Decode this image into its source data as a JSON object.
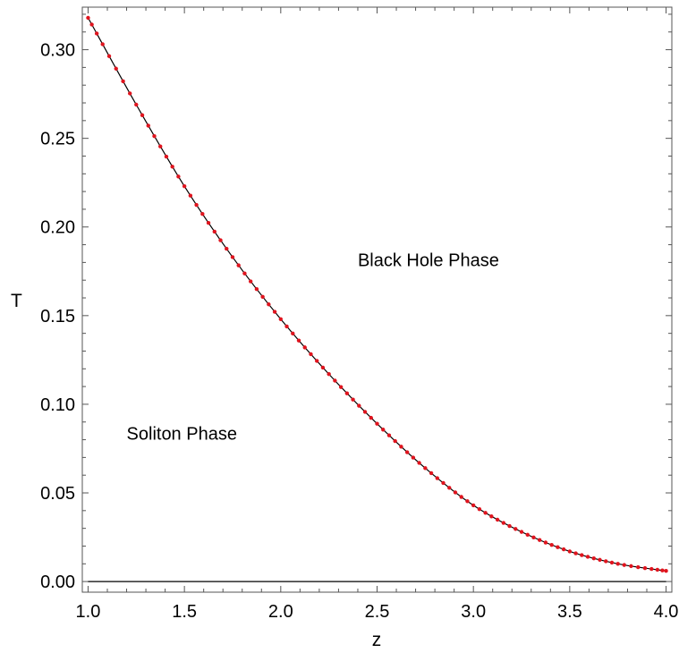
{
  "chart_data": {
    "type": "line",
    "title": "",
    "xlabel": "z",
    "ylabel": "T",
    "xlim": [
      0.97,
      4.03
    ],
    "ylim": [
      -0.006,
      0.324
    ],
    "x_ticks": [
      1.0,
      1.5,
      2.0,
      2.5,
      3.0,
      3.5,
      4.0
    ],
    "x_tick_labels": [
      "1.0",
      "1.5",
      "2.0",
      "2.5",
      "3.0",
      "3.5",
      "4.0"
    ],
    "y_ticks": [
      0.0,
      0.05,
      0.1,
      0.15,
      0.2,
      0.25,
      0.3
    ],
    "y_tick_labels": [
      "0.00",
      "0.05",
      "0.10",
      "0.15",
      "0.20",
      "0.25",
      "0.30"
    ],
    "grid": false,
    "legend": "none",
    "annotations": [
      {
        "text": "Black Hole Phase",
        "x": 2.4,
        "y": 0.178
      },
      {
        "text": "Soliton Phase",
        "x": 1.2,
        "y": 0.08
      }
    ],
    "series": [
      {
        "style": "line",
        "color": "#000000",
        "x": [
          1.0,
          1.25,
          1.5,
          1.75,
          2.0,
          2.25,
          2.5,
          2.75,
          3.0,
          3.25,
          3.5,
          3.75,
          4.0
        ],
        "y": [
          0.318,
          0.269,
          0.223,
          0.183,
          0.148,
          0.117,
          0.089,
          0.064,
          0.043,
          0.028,
          0.017,
          0.01,
          0.006
        ]
      },
      {
        "style": "points",
        "color": "#e0141e",
        "x": [
          1.0,
          1.25,
          1.5,
          1.75,
          2.0,
          2.25,
          2.5,
          2.75,
          3.0,
          3.25,
          3.5,
          3.75,
          4.0
        ],
        "y": [
          0.318,
          0.269,
          0.223,
          0.183,
          0.148,
          0.117,
          0.089,
          0.064,
          0.043,
          0.028,
          0.017,
          0.01,
          0.006
        ]
      },
      {
        "style": "line",
        "color": "#000000",
        "x": [
          1.0,
          4.0
        ],
        "y": [
          0.0,
          0.0
        ]
      }
    ]
  }
}
